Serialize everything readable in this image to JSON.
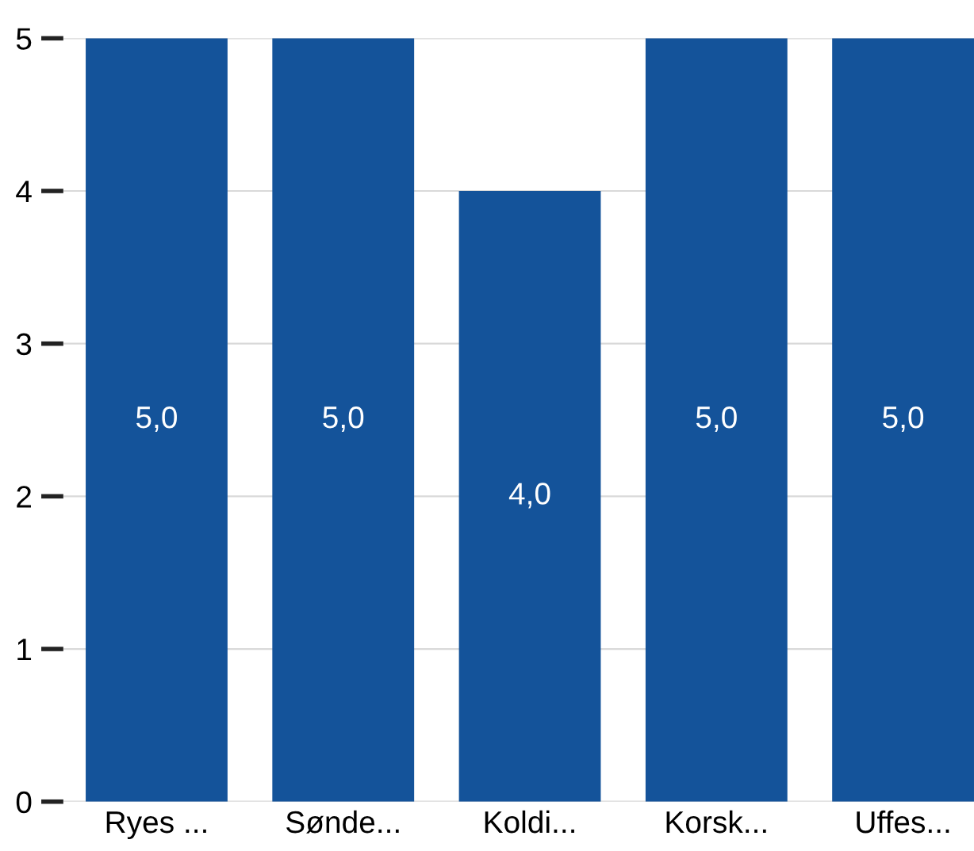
{
  "chart_data": {
    "type": "bar",
    "categories": [
      "Ryes ...",
      "Sønde...",
      "Koldi...",
      "Korsk...",
      "Uffes..."
    ],
    "values": [
      5,
      5,
      4,
      5,
      5
    ],
    "value_labels": [
      "5,0",
      "5,0",
      "4,0",
      "5,0",
      "5,0"
    ],
    "color": "#14539a",
    "ylim": [
      0,
      5
    ],
    "yticks": [
      0,
      1,
      2,
      3,
      4,
      5
    ],
    "grid": "y",
    "legend": false
  }
}
